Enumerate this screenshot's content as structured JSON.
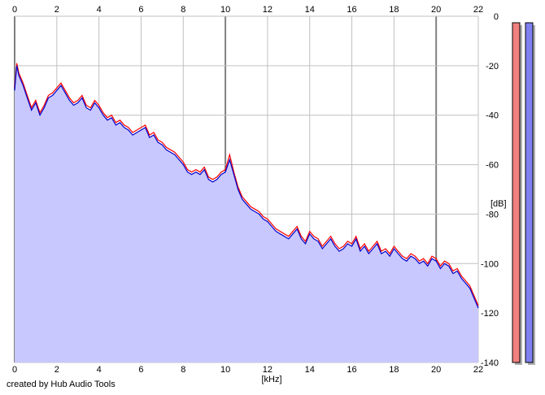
{
  "credit": "created by Hub Audio Tools",
  "colors": {
    "background": "#ffffff",
    "fill": "#c8c8ff",
    "line_left": "#ff0000",
    "line_right": "#0000cc",
    "grid_major": "#808080",
    "grid_minor": "#c0c0c0",
    "meter_left": "#f08080",
    "meter_right": "#8080f0",
    "meter_shadow": "#b0b0b0"
  },
  "chart_data": {
    "type": "area",
    "xlabel": "[kHz]",
    "ylabel": "[dB]",
    "xlim": [
      0,
      22
    ],
    "ylim": [
      -140,
      0
    ],
    "x_ticks": [
      "0",
      "2",
      "4",
      "6",
      "8",
      "10",
      "12",
      "14",
      "16",
      "18",
      "20",
      "22"
    ],
    "y_ticks": [
      "0",
      "-20",
      "-40",
      "-60",
      "-80",
      "-100",
      "-120",
      "-140"
    ],
    "x_major_ticks": [
      0,
      10,
      20
    ],
    "grid": true,
    "series": [
      {
        "color": "blue",
        "x": [
          0,
          0.1,
          0.2,
          0.4,
          0.6,
          0.8,
          1.0,
          1.2,
          1.4,
          1.6,
          1.8,
          2.0,
          2.2,
          2.4,
          2.6,
          2.8,
          3.0,
          3.2,
          3.4,
          3.6,
          3.8,
          4.0,
          4.2,
          4.4,
          4.6,
          4.8,
          5.0,
          5.2,
          5.4,
          5.6,
          5.8,
          6.0,
          6.2,
          6.4,
          6.6,
          6.8,
          7.0,
          7.2,
          7.4,
          7.6,
          7.8,
          8.0,
          8.2,
          8.4,
          8.6,
          8.8,
          9.0,
          9.2,
          9.4,
          9.6,
          9.8,
          10.0,
          10.2,
          10.4,
          10.6,
          10.8,
          11.0,
          11.2,
          11.4,
          11.6,
          11.8,
          12.0,
          12.2,
          12.4,
          12.6,
          12.8,
          13.0,
          13.2,
          13.4,
          13.6,
          13.8,
          14.0,
          14.2,
          14.4,
          14.6,
          14.8,
          15.0,
          15.2,
          15.4,
          15.6,
          15.8,
          16.0,
          16.2,
          16.4,
          16.6,
          16.8,
          17.0,
          17.2,
          17.4,
          17.6,
          17.8,
          18.0,
          18.2,
          18.4,
          18.6,
          18.8,
          19.0,
          19.2,
          19.4,
          19.6,
          19.8,
          20.0,
          20.2,
          20.4,
          20.6,
          20.8,
          21.0,
          21.2,
          21.4,
          21.6,
          21.8,
          22.0
        ],
        "y": [
          -30,
          -20,
          -24,
          -28,
          -33,
          -38,
          -35,
          -40,
          -37,
          -33,
          -32,
          -30,
          -28,
          -31,
          -34,
          -36,
          -35,
          -33,
          -37,
          -38,
          -35,
          -37,
          -40,
          -42,
          -41,
          -44,
          -43,
          -45,
          -46,
          -48,
          -47,
          -46,
          -45,
          -49,
          -48,
          -51,
          -52,
          -54,
          -55,
          -56,
          -58,
          -60,
          -63,
          -64,
          -63,
          -64,
          -62,
          -66,
          -67,
          -66,
          -64,
          -63,
          -58,
          -64,
          -70,
          -74,
          -76,
          -78,
          -79,
          -80,
          -82,
          -83,
          -85,
          -87,
          -88,
          -89,
          -90,
          -88,
          -86,
          -90,
          -92,
          -88,
          -90,
          -91,
          -94,
          -92,
          -90,
          -93,
          -95,
          -94,
          -92,
          -93,
          -90,
          -95,
          -93,
          -96,
          -94,
          -92,
          -96,
          -95,
          -97,
          -94,
          -96,
          -98,
          -99,
          -97,
          -98,
          -100,
          -99,
          -101,
          -98,
          -99,
          -102,
          -100,
          -101,
          -104,
          -103,
          -106,
          -108,
          -110,
          -114,
          -118
        ]
      },
      {
        "color": "red",
        "x": [
          0,
          0.1,
          0.2,
          0.4,
          0.6,
          0.8,
          1.0,
          1.2,
          1.4,
          1.6,
          1.8,
          2.0,
          2.2,
          2.4,
          2.6,
          2.8,
          3.0,
          3.2,
          3.4,
          3.6,
          3.8,
          4.0,
          4.2,
          4.4,
          4.6,
          4.8,
          5.0,
          5.2,
          5.4,
          5.6,
          5.8,
          6.0,
          6.2,
          6.4,
          6.6,
          6.8,
          7.0,
          7.2,
          7.4,
          7.6,
          7.8,
          8.0,
          8.2,
          8.4,
          8.6,
          8.8,
          9.0,
          9.2,
          9.4,
          9.6,
          9.8,
          10.0,
          10.2,
          10.4,
          10.6,
          10.8,
          11.0,
          11.2,
          11.4,
          11.6,
          11.8,
          12.0,
          12.2,
          12.4,
          12.6,
          12.8,
          13.0,
          13.2,
          13.4,
          13.6,
          13.8,
          14.0,
          14.2,
          14.4,
          14.6,
          14.8,
          15.0,
          15.2,
          15.4,
          15.6,
          15.8,
          16.0,
          16.2,
          16.4,
          16.6,
          16.8,
          17.0,
          17.2,
          17.4,
          17.6,
          17.8,
          18.0,
          18.2,
          18.4,
          18.6,
          18.8,
          19.0,
          19.2,
          19.4,
          19.6,
          19.8,
          20.0,
          20.2,
          20.4,
          20.6,
          20.8,
          21.0,
          21.2,
          21.4,
          21.6,
          21.8,
          22.0
        ],
        "y": [
          -29,
          -19,
          -23,
          -27,
          -32,
          -37,
          -34,
          -39,
          -36,
          -32,
          -31,
          -29,
          -27,
          -30,
          -33,
          -35,
          -34,
          -32,
          -36,
          -37,
          -34,
          -36,
          -39,
          -41,
          -40,
          -43,
          -42,
          -44,
          -45,
          -47,
          -46,
          -45,
          -44,
          -48,
          -47,
          -50,
          -51,
          -53,
          -54,
          -55,
          -57,
          -59,
          -62,
          -63,
          -62,
          -63,
          -61,
          -65,
          -66,
          -65,
          -63,
          -62,
          -56,
          -63,
          -69,
          -73,
          -75,
          -77,
          -78,
          -79,
          -81,
          -82,
          -84,
          -86,
          -87,
          -88,
          -89,
          -87,
          -85,
          -89,
          -91,
          -87,
          -89,
          -90,
          -93,
          -91,
          -89,
          -92,
          -94,
          -93,
          -91,
          -92,
          -89,
          -94,
          -92,
          -95,
          -93,
          -91,
          -95,
          -94,
          -96,
          -93,
          -95,
          -97,
          -98,
          -96,
          -97,
          -99,
          -98,
          -100,
          -97,
          -98,
          -101,
          -99,
          -100,
          -103,
          -102,
          -105,
          -107,
          -109,
          -113,
          -117
        ]
      }
    ],
    "level_meters": [
      {
        "channel": "left",
        "value_db": 0
      },
      {
        "channel": "right",
        "value_db": 0
      }
    ]
  }
}
